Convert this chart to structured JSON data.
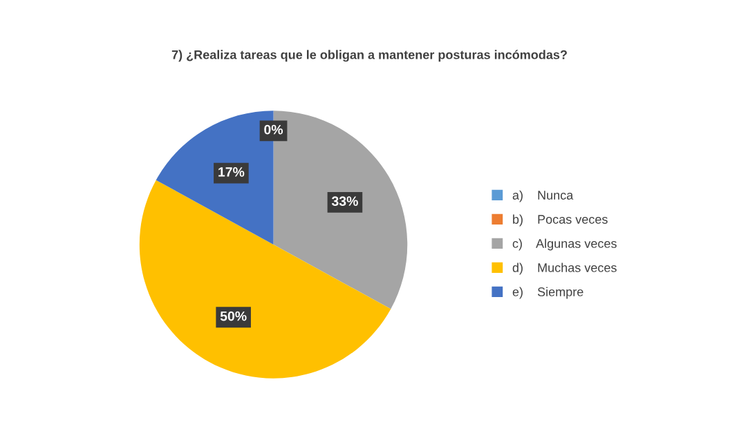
{
  "chart_data": {
    "type": "pie",
    "title": "7) ¿Realiza tareas que le obligan a mantener posturas incómodas?",
    "categories": [
      "a)    Nunca",
      "b)    Pocas veces",
      "c)    Algunas veces",
      "d)    Muchas veces",
      "e)    Siempre"
    ],
    "values": [
      0,
      0,
      33,
      50,
      17
    ],
    "colors": [
      "#5b9bd5",
      "#ed7d31",
      "#a5a5a5",
      "#ffc000",
      "#4472c4"
    ],
    "value_labels": [
      "0%",
      null,
      "33%",
      "50%",
      "17%"
    ],
    "legend": "right"
  }
}
